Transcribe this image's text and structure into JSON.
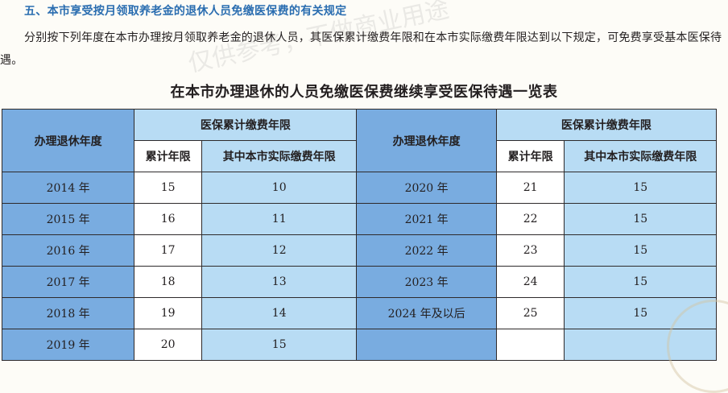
{
  "section_heading": "五、本市享受按月领取养老金的退休人员免缴医保费的有关规定",
  "paragraph": "分别按下列年度在本市办理按月领取养老金的退休人员，其医保累计缴费年限和在本市实际缴费年限达到以下规定，可免费享受基本医保待遇。",
  "table_title": "在本市办理退休的人员免缴医保费继续享受医保待遇一览表",
  "table": {
    "col_retire_year": "办理退休年度",
    "col_group": "医保累计缴费年限",
    "col_total": "累计年限",
    "col_local": "其中本市实际缴费年限",
    "left_rows": [
      {
        "year": "2014 年",
        "total": "15",
        "local": "10"
      },
      {
        "year": "2015 年",
        "total": "16",
        "local": "11"
      },
      {
        "year": "2016 年",
        "total": "17",
        "local": "12"
      },
      {
        "year": "2017 年",
        "total": "18",
        "local": "13"
      },
      {
        "year": "2018 年",
        "total": "19",
        "local": "14"
      },
      {
        "year": "2019 年",
        "total": "20",
        "local": "15"
      }
    ],
    "right_rows": [
      {
        "year": "2020 年",
        "total": "21",
        "local": "15"
      },
      {
        "year": "2021 年",
        "total": "22",
        "local": "15"
      },
      {
        "year": "2022 年",
        "total": "23",
        "local": "15"
      },
      {
        "year": "2023 年",
        "total": "24",
        "local": "15"
      },
      {
        "year": "2024 年及以后",
        "total": "25",
        "local": "15"
      },
      {
        "year": "",
        "total": "",
        "local": ""
      }
    ]
  },
  "watermark": "仅供参考，不做商业用途",
  "colors": {
    "heading": "#2a6db0",
    "dark_cell": "#79ace0",
    "light_cell": "#b8dcf4"
  }
}
